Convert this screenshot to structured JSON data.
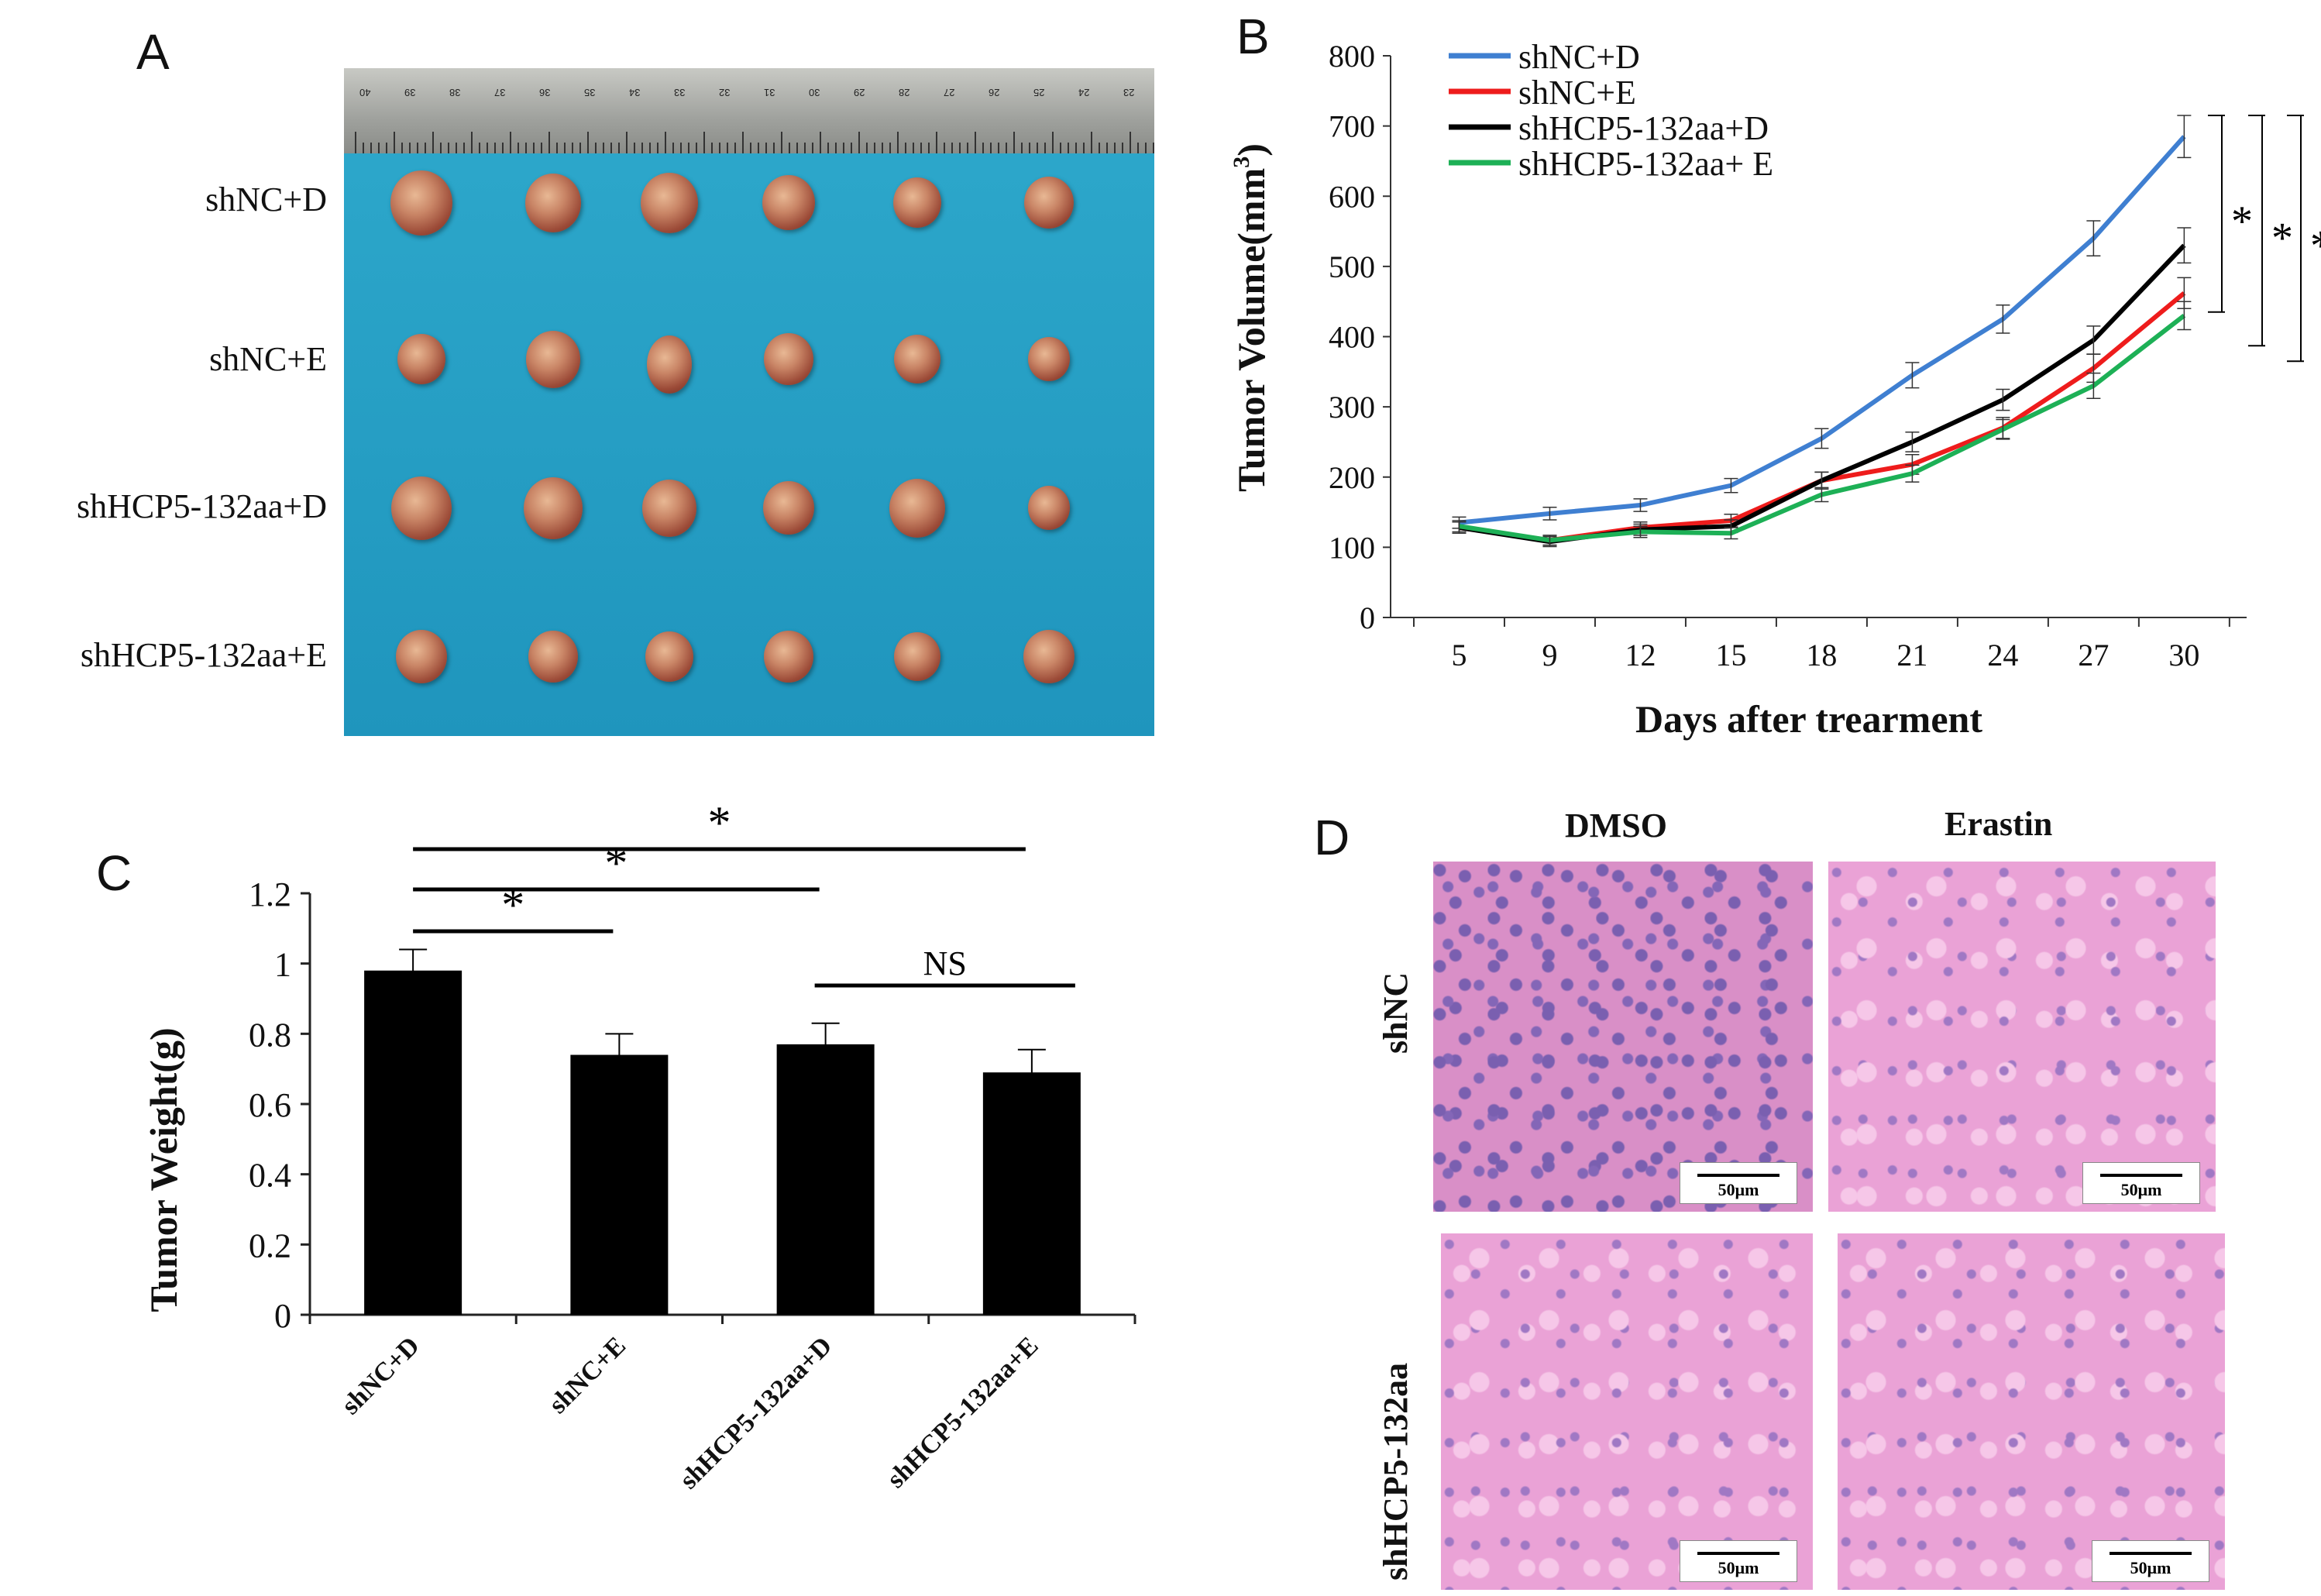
{
  "panels": {
    "a": {
      "letter": "A"
    },
    "b": {
      "letter": "B"
    },
    "c": {
      "letter": "C"
    },
    "d": {
      "letter": "D"
    }
  },
  "panel_a": {
    "ruler_numbers": [
      "40",
      "39",
      "38",
      "37",
      "36",
      "35",
      "34",
      "33",
      "32",
      "31",
      "30",
      "29",
      "28",
      "27",
      "26",
      "25",
      "24",
      "23"
    ],
    "row_labels": [
      "shNC+D",
      "shNC+E",
      "shHCP5-132aa+D",
      "shHCP5-132aa+E"
    ]
  },
  "panel_d": {
    "col_labels": [
      "DMSO",
      "Erastin"
    ],
    "row_labels": [
      "shNC",
      "shHCP5-132aa"
    ],
    "scale_label": "50μm"
  },
  "chart_data": [
    {
      "id": "B",
      "type": "line",
      "title": "",
      "xlabel": "Days after trearment",
      "ylabel": "Tumor Volume(mm",
      "ylabel_sup": "3",
      "ylabel_end": ")",
      "x": [
        5,
        9,
        12,
        15,
        18,
        21,
        24,
        27,
        30
      ],
      "ylim": [
        0,
        800
      ],
      "yticks": [
        0,
        100,
        200,
        300,
        400,
        500,
        600,
        700,
        800
      ],
      "series": [
        {
          "name": "shNC+D",
          "color": "#3f7fd1",
          "values": [
            135,
            148,
            160,
            188,
            255,
            345,
            425,
            540,
            685
          ],
          "errors": [
            8,
            9,
            9,
            10,
            14,
            18,
            20,
            25,
            30
          ]
        },
        {
          "name": "shNC+E",
          "color": "#ee1c1c",
          "values": [
            128,
            110,
            128,
            138,
            195,
            218,
            270,
            355,
            462
          ],
          "errors": [
            8,
            7,
            8,
            9,
            12,
            14,
            15,
            20,
            22
          ]
        },
        {
          "name": "shHCP5-132aa+D",
          "color": "#000000",
          "values": [
            128,
            108,
            125,
            130,
            195,
            250,
            310,
            395,
            530
          ],
          "errors": [
            8,
            7,
            8,
            9,
            12,
            14,
            15,
            20,
            25
          ]
        },
        {
          "name": "shHCP5-132aa+ E",
          "color": "#1db056",
          "values": [
            130,
            110,
            122,
            120,
            175,
            205,
            268,
            330,
            430
          ],
          "errors": [
            8,
            7,
            8,
            8,
            10,
            12,
            14,
            18,
            20
          ]
        }
      ],
      "significance": [
        "*",
        "*",
        "*"
      ]
    },
    {
      "id": "C",
      "type": "bar",
      "title": "",
      "xlabel": "",
      "ylabel": "Tumor Weight(g)",
      "categories": [
        "shNC+D",
        "shNC+E",
        "shHCP5-132aa+D",
        "shHCP5-132aa+E"
      ],
      "values": [
        0.98,
        0.74,
        0.77,
        0.69
      ],
      "errors": [
        0.06,
        0.06,
        0.06,
        0.065
      ],
      "ylim": [
        0,
        1.2
      ],
      "yticks": [
        "0",
        "0.2",
        "0.4",
        "0.6",
        "0.8",
        "1",
        "1.2"
      ],
      "bar_color": "#000000",
      "significance": [
        {
          "from": 0,
          "to": 1,
          "label": "*"
        },
        {
          "from": 0,
          "to": 2,
          "label": "*"
        },
        {
          "from": 0,
          "to": 3,
          "label": "*"
        },
        {
          "from": 2,
          "to": 3,
          "label": "NS"
        }
      ]
    }
  ]
}
